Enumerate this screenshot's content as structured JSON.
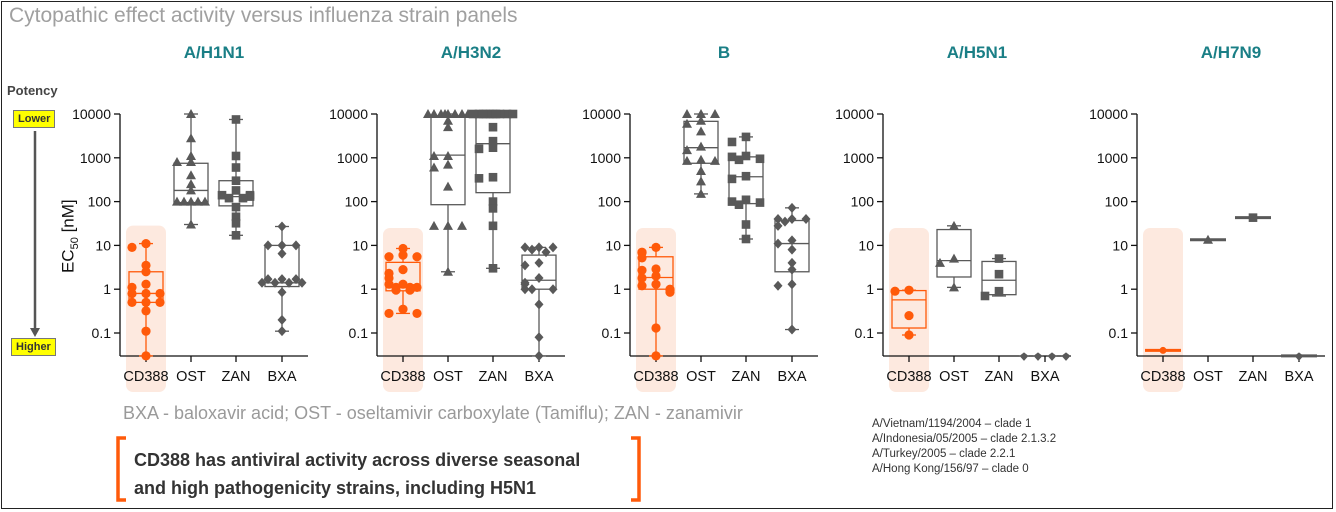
{
  "title": "Cytopathic effect activity versus influenza strain panels",
  "potency": {
    "label": "Potency",
    "top": "Lower",
    "bottom": "Higher"
  },
  "y_axis_label": "EC",
  "y_axis_sub": "50",
  "y_axis_unit": " [nM]",
  "footnote": "BXA - baloxavir acid; OST - oseltamivir carboxylate (Tamiflu); ZAN - zanamivir",
  "claim": [
    "CD388 has antiviral activity across diverse seasonal",
    "and high pathogenicity strains, including H5N1"
  ],
  "h5n1_strains": [
    "A/Vietnam/1194/2004 – clade 1",
    "A/Indonesia/05/2005 – clade 2.1.3.2",
    "A/Turkey/2005 – clade 2.2.1",
    "A/Hong Kong/156/97 – clade 0"
  ],
  "colors": {
    "cd388": "#ff5a0a",
    "comparator": "#595959",
    "highlight": "#fde9df",
    "panel_title": "#1a7f86",
    "bracket": "#ff5a0a"
  },
  "chart_data": {
    "type": "box-scatter",
    "y_scale": "log",
    "ylim": [
      0.03,
      10000
    ],
    "yticks": [
      "10000",
      "1000",
      "100",
      "10",
      "1",
      "0.1"
    ],
    "ytick_values": [
      10000,
      1000,
      100,
      10,
      1,
      0.1
    ],
    "categories": [
      "CD388",
      "OST",
      "ZAN",
      "BXA"
    ],
    "markers": {
      "CD388": "circle",
      "OST": "triangle",
      "ZAN": "square",
      "BXA": "diamond"
    },
    "panels": [
      {
        "title": "A/H1N1",
        "series": [
          {
            "name": "CD388",
            "points": [
              11,
              9,
              3.5,
              2.5,
              1.3,
              1.1,
              0.8,
              0.8,
              0.8,
              0.5,
              0.5,
              0.5,
              0.32,
              0.11,
              0.03
            ],
            "box": {
              "min": 0.03,
              "q1": 0.5,
              "median": 0.8,
              "q3": 2.5,
              "max": 11
            }
          },
          {
            "name": "OST",
            "points": [
              10000,
              2800,
              1100,
              800,
              800,
              400,
              250,
              180,
              100,
              100,
              100,
              100,
              100,
              30
            ],
            "box": {
              "min": 30,
              "q1": 95,
              "median": 180,
              "q3": 750,
              "max": 10000
            }
          },
          {
            "name": "ZAN",
            "points": [
              7500,
              1100,
              600,
              300,
              180,
              140,
              140,
              130,
              120,
              120,
              75,
              45,
              32,
              17
            ],
            "box": {
              "min": 17,
              "q1": 80,
              "median": 130,
              "q3": 300,
              "max": 7500
            }
          },
          {
            "name": "BXA",
            "points": [
              27,
              10,
              10,
              10,
              6.5,
              1.7,
              1.7,
              1.7,
              1.4,
              1.4,
              1.4,
              1.4,
              0.85,
              0.2,
              0.11
            ],
            "box": {
              "min": 0.11,
              "q1": 1.15,
              "median": 1.4,
              "q3": 10,
              "max": 27
            }
          }
        ]
      },
      {
        "title": "A/H3N2",
        "series": [
          {
            "name": "CD388",
            "points": [
              8.5,
              6,
              5.5,
              5.5,
              2.8,
              2.3,
              1.8,
              1.3,
              1.3,
              1.1,
              1.1,
              1.1,
              0.95,
              0.95,
              0.35,
              0.28,
              0.28
            ],
            "box": {
              "min": 0.28,
              "q1": 0.92,
              "median": 1.25,
              "q3": 4.1,
              "max": 8.5
            }
          },
          {
            "name": "OST",
            "points": [
              10000,
              10000,
              10000,
              10000,
              10000,
              10000,
              10000,
              10000,
              7000,
              5000,
              1100,
              1100,
              700,
              600,
              220,
              28,
              28,
              28,
              2.5
            ],
            "box": {
              "min": 2.5,
              "q1": 85,
              "median": 1150,
              "q3": 9000,
              "max": 10000
            }
          },
          {
            "name": "ZAN",
            "points": [
              10000,
              10000,
              10000,
              10000,
              10000,
              10000,
              10000,
              10000,
              10000,
              10000,
              5000,
              2400,
              1700,
              1600,
              360,
              340,
              100,
              70,
              28,
              3
            ],
            "box": {
              "min": 3,
              "q1": 160,
              "median": 2100,
              "q3": 10000,
              "max": 10000
            }
          },
          {
            "name": "BXA",
            "points": [
              9,
              9,
              9,
              8,
              7,
              4,
              3.5,
              1.8,
              1.4,
              1.3,
              1.0,
              1.0,
              1.0,
              0.45,
              0.08,
              0.03
            ],
            "box": {
              "min": 0.03,
              "q1": 1.0,
              "median": 1.6,
              "q3": 6,
              "max": 9
            }
          }
        ]
      },
      {
        "title": "B",
        "series": [
          {
            "name": "CD388",
            "points": [
              9,
              7,
              6.8,
              5.2,
              2.9,
              2.7,
              2.0,
              1.8,
              1.3,
              1.2,
              1.0,
              0.95,
              0.85,
              0.13,
              0.03
            ],
            "box": {
              "min": 0.03,
              "q1": 1.0,
              "median": 1.85,
              "q3": 5.5,
              "max": 9
            }
          },
          {
            "name": "OST",
            "points": [
              10000,
              10000,
              10000,
              7000,
              6000,
              4000,
              1800,
              1500,
              900,
              850,
              850,
              500,
              290,
              150
            ],
            "box": {
              "min": 150,
              "q1": 750,
              "median": 1700,
              "q3": 6800,
              "max": 10000
            }
          },
          {
            "name": "ZAN",
            "points": [
              3000,
              2300,
              1100,
              1050,
              950,
              900,
              380,
              330,
              110,
              100,
              95,
              85,
              30,
              14
            ],
            "box": {
              "min": 14,
              "q1": 90,
              "median": 370,
              "q3": 1050,
              "max": 3000
            }
          },
          {
            "name": "BXA",
            "points": [
              72,
              40,
              40,
              40,
              35,
              28,
              13,
              11,
              8,
              4,
              2.8,
              1.3,
              1.2,
              0.12
            ],
            "box": {
              "min": 0.12,
              "q1": 2.5,
              "median": 11,
              "q3": 37,
              "max": 72
            }
          }
        ]
      },
      {
        "title": "A/H5N1",
        "series": [
          {
            "name": "CD388",
            "points": [
              0.95,
              0.9,
              0.25,
              0.09
            ],
            "box": {
              "min": 0.09,
              "q1": 0.13,
              "median": 0.57,
              "q3": 0.93,
              "max": 0.95
            }
          },
          {
            "name": "OST",
            "points": [
              28,
              5,
              4,
              1.1
            ],
            "box": {
              "min": 1.1,
              "q1": 1.9,
              "median": 4.5,
              "q3": 23,
              "max": 28
            }
          },
          {
            "name": "ZAN",
            "points": [
              5,
              2.2,
              0.9,
              0.7
            ],
            "box": {
              "min": 0.7,
              "q1": 0.75,
              "median": 1.6,
              "q3": 4.3,
              "max": 5
            }
          },
          {
            "name": "BXA",
            "points": [
              0.03,
              0.03,
              0.03,
              0.03
            ],
            "box": null
          }
        ]
      },
      {
        "title": "A/H7N9",
        "series": [
          {
            "name": "CD388",
            "points": [
              0.04
            ],
            "box": {
              "min": 0.04,
              "q1": 0.04,
              "median": 0.04,
              "q3": 0.04,
              "max": 0.04
            }
          },
          {
            "name": "OST",
            "points": [
              13.5
            ],
            "box": {
              "min": 13.5,
              "q1": 13.5,
              "median": 13.5,
              "q3": 13.5,
              "max": 13.5
            }
          },
          {
            "name": "ZAN",
            "points": [
              43
            ],
            "box": {
              "min": 43,
              "q1": 43,
              "median": 43,
              "q3": 43,
              "max": 43
            }
          },
          {
            "name": "BXA",
            "points": [
              0.03
            ],
            "box": {
              "min": 0.03,
              "q1": 0.03,
              "median": 0.03,
              "q3": 0.03,
              "max": 0.03
            }
          }
        ]
      }
    ]
  }
}
